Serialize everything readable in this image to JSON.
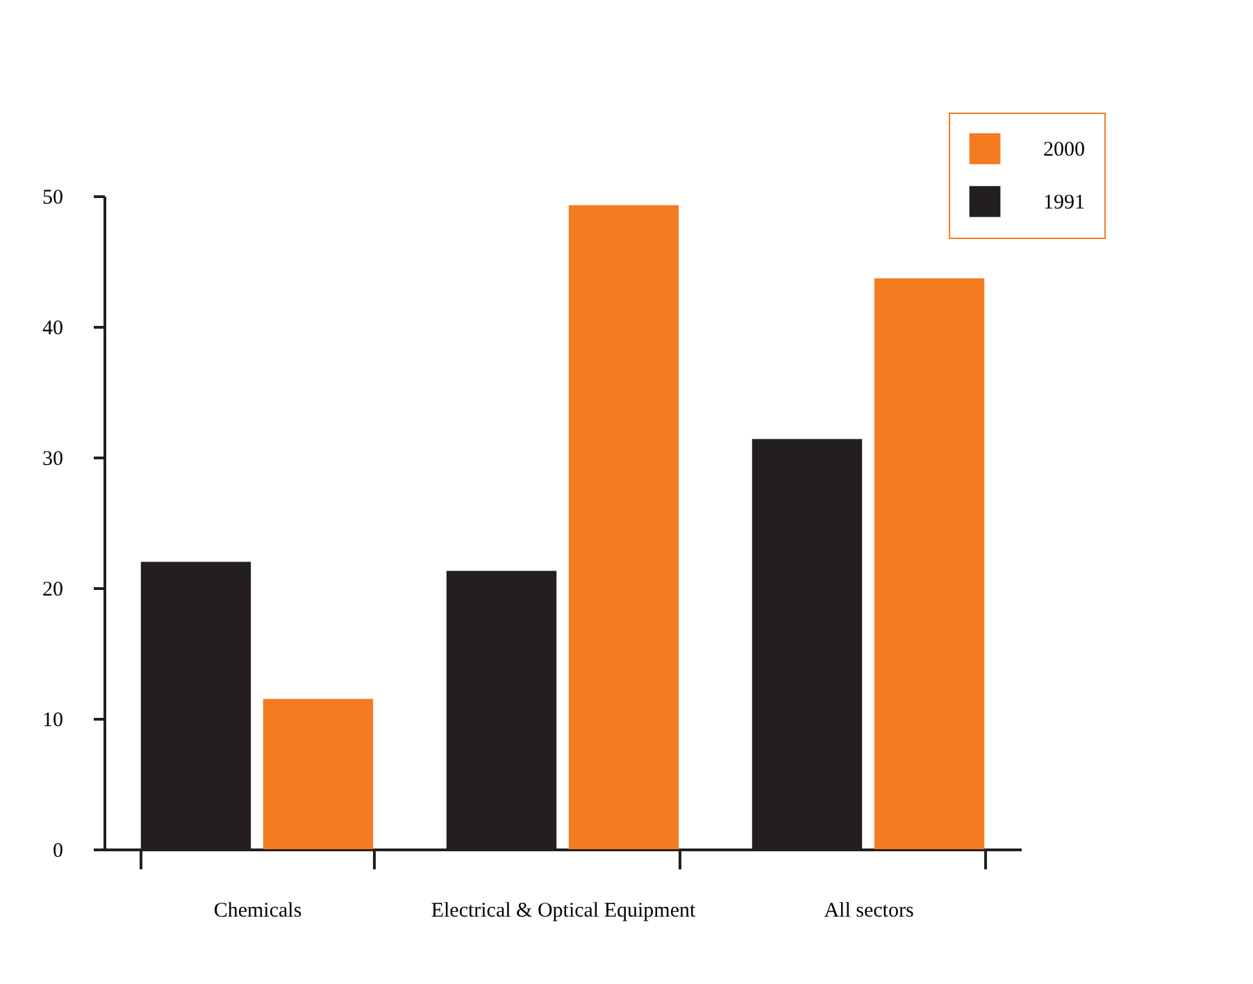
{
  "chart_data": {
    "type": "bar",
    "categories": [
      "Chemicals",
      "Electrical & Optical Equipment",
      "All sectors"
    ],
    "series": [
      {
        "name": "1991",
        "color": "#231f20",
        "values": [
          22.0,
          21.3,
          31.4
        ]
      },
      {
        "name": "2000",
        "color": "#f47b20",
        "values": [
          11.5,
          49.3,
          43.7
        ]
      }
    ],
    "ylim": [
      0,
      50
    ],
    "yticks": [
      0,
      10,
      20,
      30,
      40,
      50
    ],
    "grid": false,
    "legend": "top right"
  }
}
